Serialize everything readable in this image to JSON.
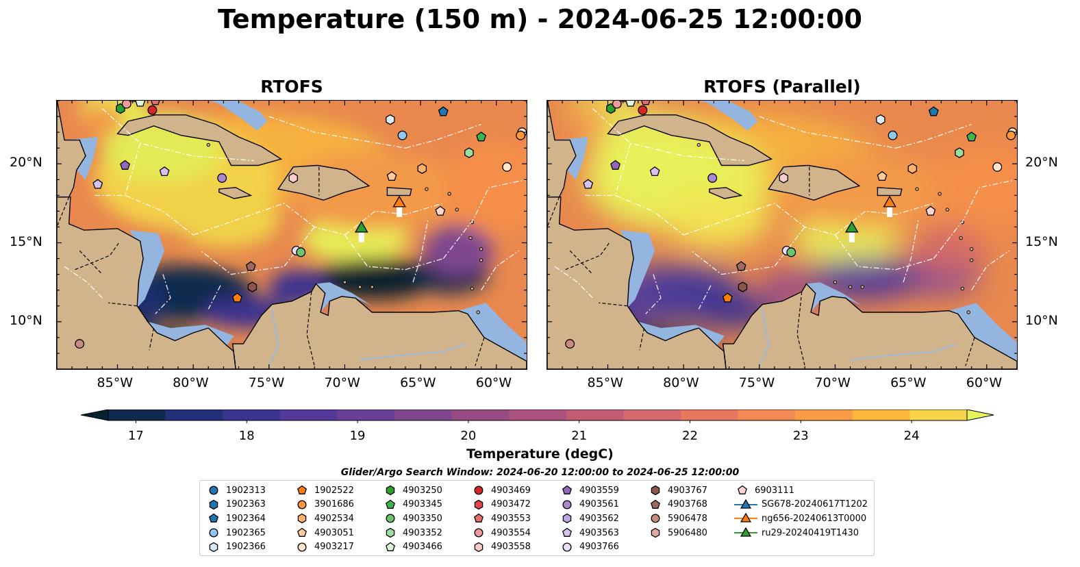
{
  "title": "Temperature (150 m) - 2024-06-25 12:00:00",
  "panels": [
    {
      "title": "RTOFS",
      "variant": "control"
    },
    {
      "title": "RTOFS (Parallel)",
      "variant": "parallel"
    }
  ],
  "axes": {
    "lon_ticks": [
      "85°W",
      "80°W",
      "75°W",
      "70°W",
      "65°W",
      "60°W"
    ],
    "lat_ticks": [
      "20°N",
      "15°N",
      "10°N"
    ],
    "lon_range": [
      -89,
      -58
    ],
    "lat_range": [
      7,
      24
    ]
  },
  "colorbar": {
    "label": "Temperature (degC)",
    "ticks": [
      "17",
      "18",
      "19",
      "20",
      "21",
      "22",
      "23",
      "24"
    ],
    "range": [
      16.75,
      24.5
    ],
    "colors": [
      "#06222e",
      "#0f2a4f",
      "#22307a",
      "#3a3390",
      "#53399a",
      "#6a3f98",
      "#80458f",
      "#964b86",
      "#ab527e",
      "#c15c74",
      "#d4686a",
      "#e6785e",
      "#f28a53",
      "#f99c45",
      "#fdb73c",
      "#f7d44a",
      "#e6f25a"
    ],
    "extend": "both"
  },
  "legend": {
    "title": "Glider/Argo Search Window: 2024-06-20 12:00:00 to 2024-06-25 12:00:00",
    "columns": [
      [
        {
          "label": "1902313",
          "marker": "circle",
          "color": "#1f77b4"
        },
        {
          "label": "1902363",
          "marker": "hexagon",
          "color": "#1f77b4"
        },
        {
          "label": "1902364",
          "marker": "pentagon",
          "color": "#1f77b4"
        },
        {
          "label": "1902365",
          "marker": "circle",
          "color": "#92c5f0"
        },
        {
          "label": "1902366",
          "marker": "hexagon",
          "color": "#dcecfb"
        }
      ],
      [
        {
          "label": "1902522",
          "marker": "pentagon",
          "color": "#ff7f0e"
        },
        {
          "label": "3901686",
          "marker": "circle",
          "color": "#ff983a"
        },
        {
          "label": "4902534",
          "marker": "hexagon",
          "color": "#ffb26e"
        },
        {
          "label": "4903051",
          "marker": "pentagon",
          "color": "#ffcc99"
        },
        {
          "label": "4903217",
          "marker": "circle",
          "color": "#ffe6cc"
        }
      ],
      [
        {
          "label": "4903250",
          "marker": "hexagon",
          "color": "#2ca02c"
        },
        {
          "label": "4903345",
          "marker": "pentagon",
          "color": "#3cb54a"
        },
        {
          "label": "4903350",
          "marker": "circle",
          "color": "#6cc56c"
        },
        {
          "label": "4903352",
          "marker": "hexagon",
          "color": "#9fdc9f"
        },
        {
          "label": "4903466",
          "marker": "pentagon",
          "color": "#dff5df"
        }
      ],
      [
        {
          "label": "4903469",
          "marker": "circle",
          "color": "#d62728"
        },
        {
          "label": "4903472",
          "marker": "hexagon",
          "color": "#e0474a"
        },
        {
          "label": "4903553",
          "marker": "pentagon",
          "color": "#e86b6e"
        },
        {
          "label": "4903554",
          "marker": "circle",
          "color": "#f09a9b"
        },
        {
          "label": "4903558",
          "marker": "hexagon",
          "color": "#f8cccc"
        }
      ],
      [
        {
          "label": "4903559",
          "marker": "pentagon",
          "color": "#9467bd"
        },
        {
          "label": "4903561",
          "marker": "circle",
          "color": "#a98ad0"
        },
        {
          "label": "4903562",
          "marker": "hexagon",
          "color": "#bfa5e0"
        },
        {
          "label": "4903563",
          "marker": "pentagon",
          "color": "#d6c2f0"
        },
        {
          "label": "4903766",
          "marker": "circle",
          "color": "#ecdffc"
        }
      ],
      [
        {
          "label": "4903767",
          "marker": "hexagon",
          "color": "#8c564b"
        },
        {
          "label": "4903768",
          "marker": "pentagon",
          "color": "#a06a5e"
        },
        {
          "label": "5906478",
          "marker": "circle",
          "color": "#c98b7f"
        },
        {
          "label": "5906480",
          "marker": "hexagon",
          "color": "#e0aa9f"
        }
      ],
      [
        {
          "label": "6903111",
          "marker": "pentagon",
          "color": "#fbd7cf"
        },
        {
          "label": "SG678-20240617T1202",
          "marker": "triangle",
          "color": "#1f77b4",
          "line": true
        },
        {
          "label": "ng656-20240613T0000",
          "marker": "triangle",
          "color": "#ff7f0e",
          "line": true
        },
        {
          "label": "ru29-20240419T1430",
          "marker": "triangle",
          "color": "#2ca02c",
          "line": true
        }
      ]
    ]
  },
  "floats": [
    {
      "lon": -84.8,
      "lat": 23.5,
      "marker": "hexagon",
      "color": "#2ca02c"
    },
    {
      "lon": -84.4,
      "lat": 23.8,
      "marker": "circle",
      "color": "#f09a9b"
    },
    {
      "lon": -84.0,
      "lat": 24.2,
      "marker": "pentagon",
      "color": "#e86b6e"
    },
    {
      "lon": -83.5,
      "lat": 23.9,
      "marker": "pentagon",
      "color": "#dff5df"
    },
    {
      "lon": -82.7,
      "lat": 23.4,
      "marker": "circle",
      "color": "#d62728"
    },
    {
      "lon": -82.5,
      "lat": 24.0,
      "marker": "pentagon",
      "color": "#e86b6e"
    },
    {
      "lon": -84.5,
      "lat": 19.9,
      "marker": "pentagon",
      "color": "#9467bd"
    },
    {
      "lon": -86.3,
      "lat": 18.7,
      "marker": "pentagon",
      "color": "#d6c2f0"
    },
    {
      "lon": -81.9,
      "lat": 19.5,
      "marker": "pentagon",
      "color": "#d6c2f0"
    },
    {
      "lon": -78.1,
      "lat": 19.1,
      "marker": "circle",
      "color": "#a98ad0"
    },
    {
      "lon": -73.4,
      "lat": 19.1,
      "marker": "hexagon",
      "color": "#f8cccc"
    },
    {
      "lon": -67.0,
      "lat": 22.8,
      "marker": "hexagon",
      "color": "#dcecfb"
    },
    {
      "lon": -66.2,
      "lat": 21.8,
      "marker": "circle",
      "color": "#92c5f0"
    },
    {
      "lon": -63.5,
      "lat": 23.3,
      "marker": "pentagon",
      "color": "#1f77b4"
    },
    {
      "lon": -61.0,
      "lat": 21.7,
      "marker": "pentagon",
      "color": "#3cb54a"
    },
    {
      "lon": -61.8,
      "lat": 20.7,
      "marker": "hexagon",
      "color": "#9fdc9f"
    },
    {
      "lon": -58.3,
      "lat": 22.0,
      "marker": "circle",
      "color": "#ffe6cc"
    },
    {
      "lon": -58.4,
      "lat": 21.8,
      "marker": "circle",
      "color": "#ff983a"
    },
    {
      "lon": -59.3,
      "lat": 19.8,
      "marker": "circle",
      "color": "#ffe6cc"
    },
    {
      "lon": -64.9,
      "lat": 19.7,
      "marker": "hexagon",
      "color": "#ffb26e"
    },
    {
      "lon": -66.9,
      "lat": 19.2,
      "marker": "pentagon",
      "color": "#ffcc99"
    },
    {
      "lon": -63.7,
      "lat": 17.0,
      "marker": "pentagon",
      "color": "#fbd7cf"
    },
    {
      "lon": -73.2,
      "lat": 14.5,
      "marker": "circle",
      "color": "#ecdffc"
    },
    {
      "lon": -72.9,
      "lat": 14.4,
      "marker": "circle",
      "color": "#6cc56c"
    },
    {
      "lon": -76.2,
      "lat": 13.5,
      "marker": "pentagon",
      "color": "#a06a5e"
    },
    {
      "lon": -76.1,
      "lat": 12.2,
      "marker": "hexagon",
      "color": "#8c564b"
    },
    {
      "lon": -77.1,
      "lat": 11.5,
      "marker": "pentagon",
      "color": "#ff7f0e"
    },
    {
      "lon": -87.5,
      "lat": 8.6,
      "marker": "circle",
      "color": "#c98b7f"
    }
  ],
  "gliders": [
    {
      "name": "ng656-20240613T0000",
      "lon": -66.4,
      "lat": 17.5,
      "color": "#ff7f0e"
    },
    {
      "name": "ru29-20240419T1430",
      "lon": -68.9,
      "lat": 15.9,
      "color": "#2ca02c"
    }
  ]
}
